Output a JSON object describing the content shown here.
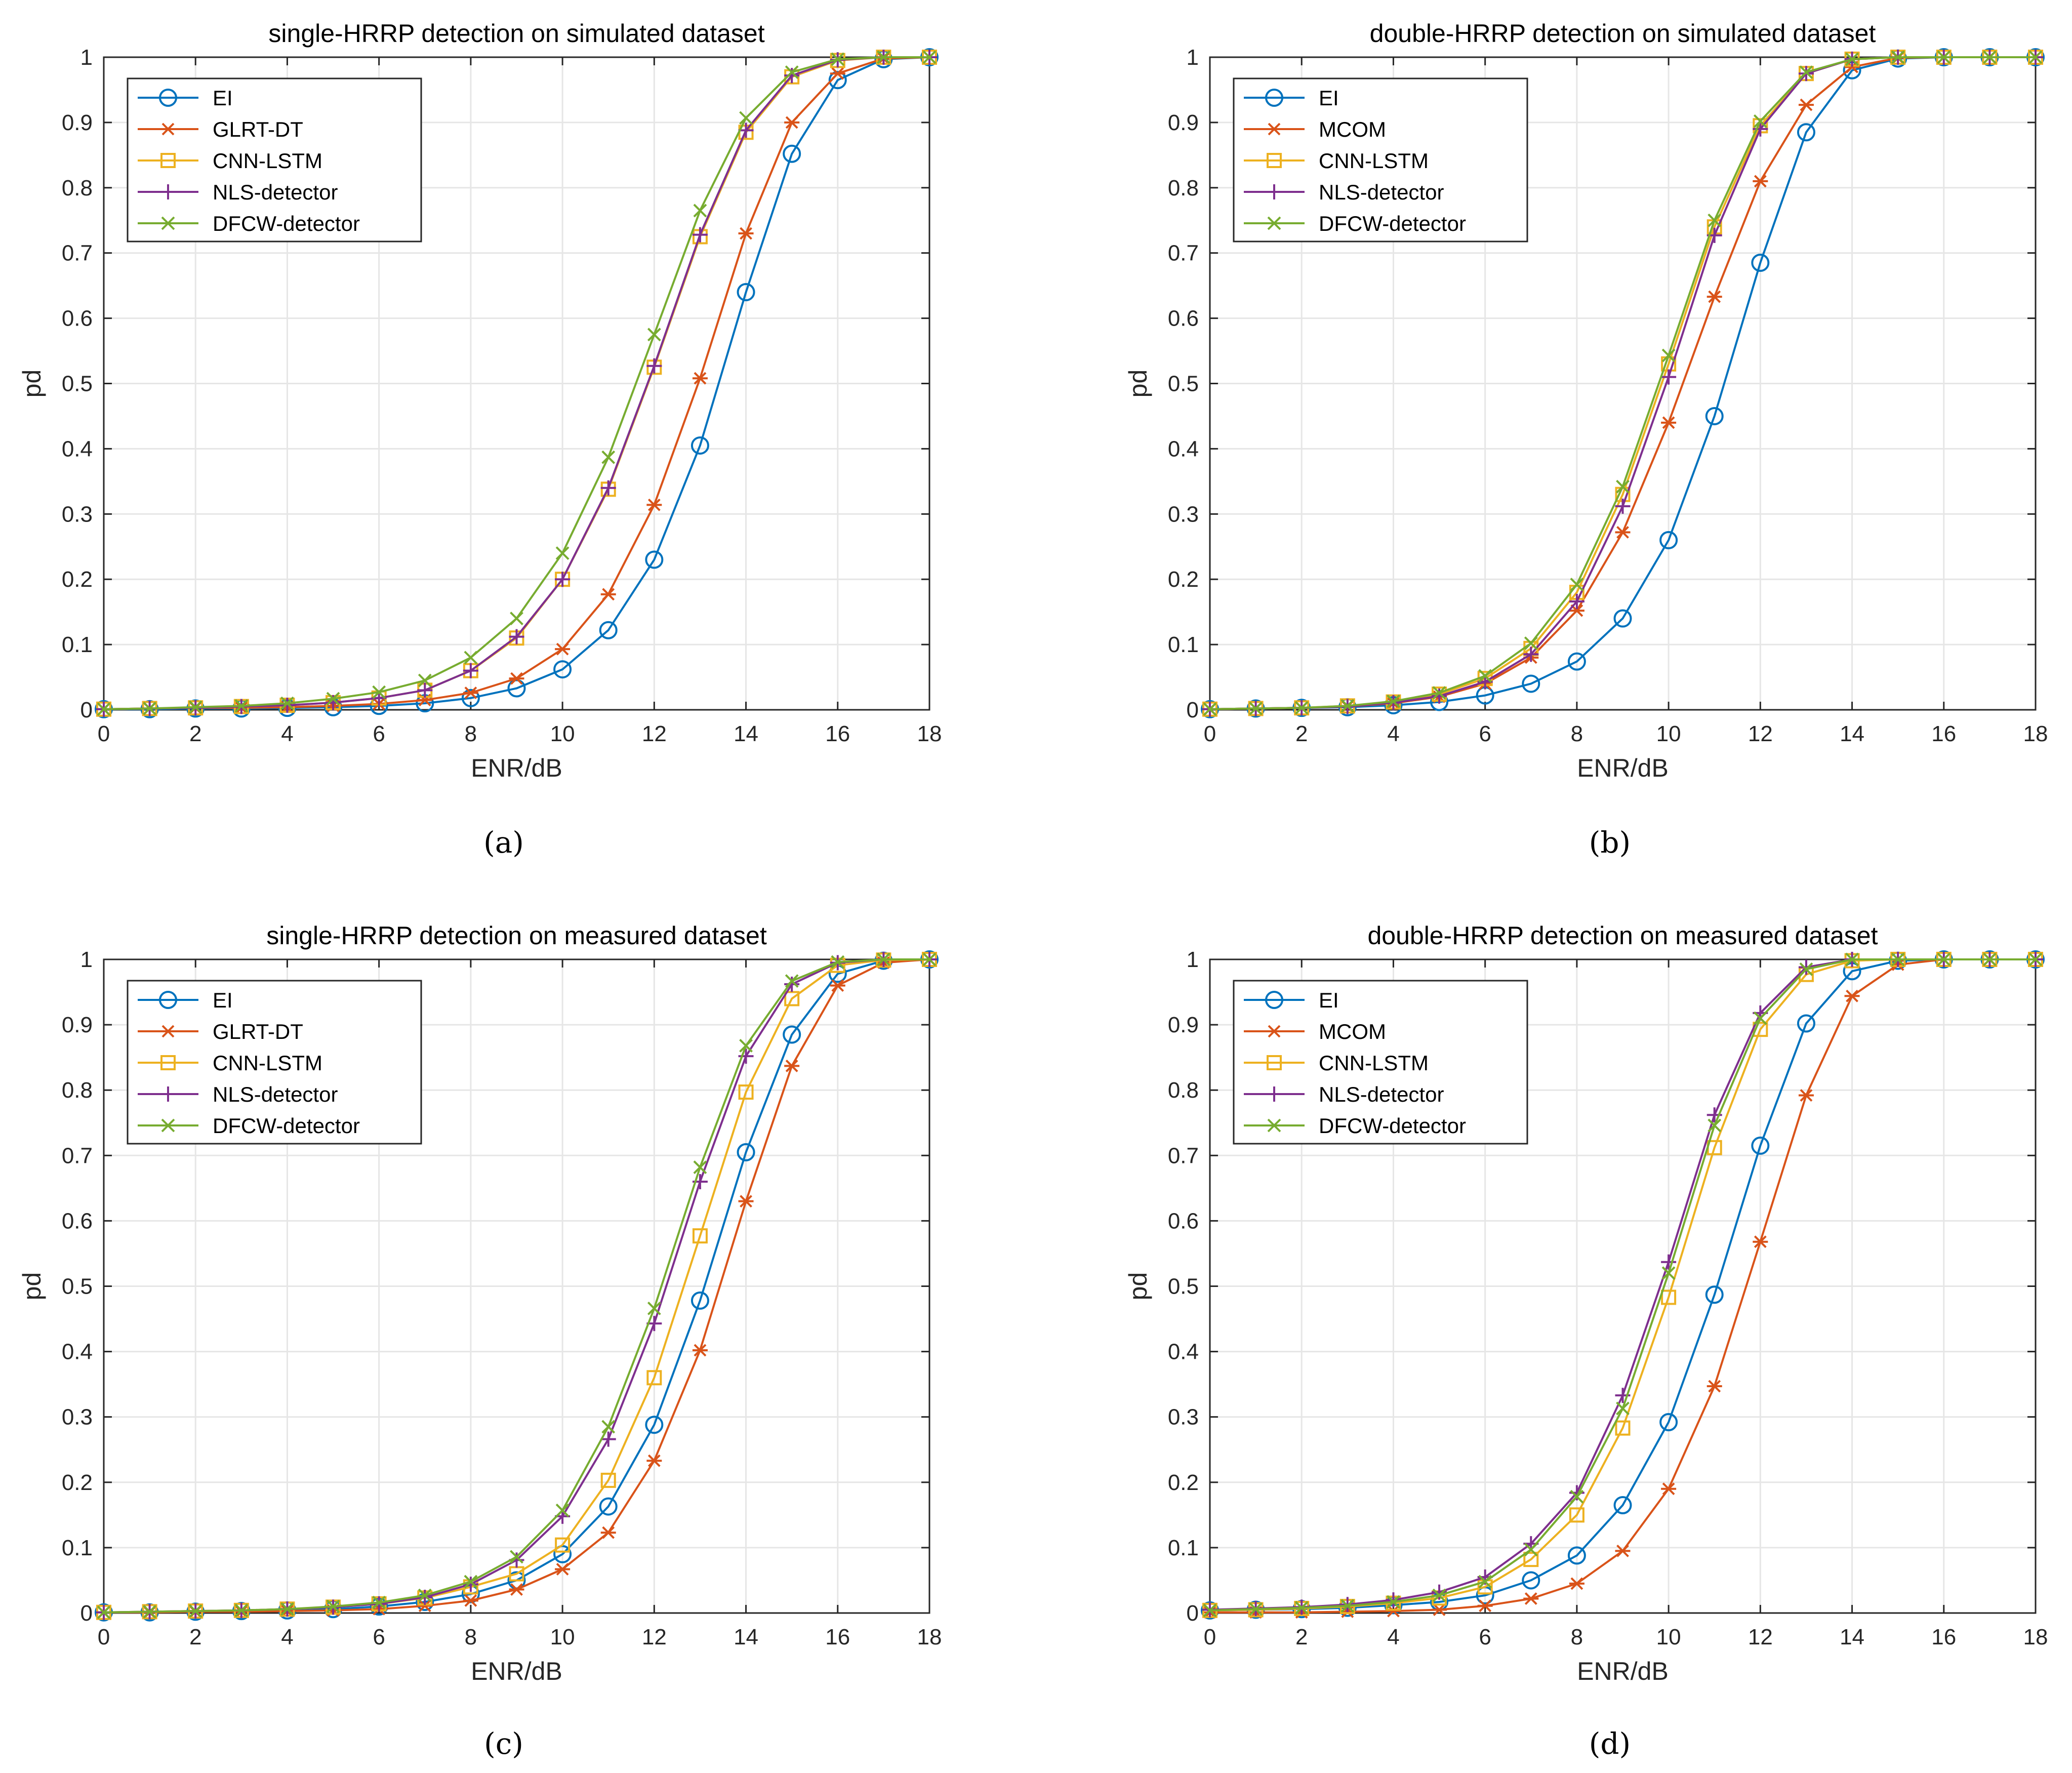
{
  "colors": {
    "EI": "#0072BD",
    "GLRT-DT": "#D95319",
    "MCOM": "#D95319",
    "CNN-LSTM": "#EDB120",
    "NLS-detector": "#7E2F8E",
    "DFCW-detector": "#77AC30",
    "grid": "#e6e6e6",
    "axis": "#262626"
  },
  "x_ticks": [
    "0",
    "2",
    "4",
    "6",
    "8",
    "10",
    "12",
    "14",
    "16",
    "18"
  ],
  "y_ticks": [
    "0",
    "0.1",
    "0.2",
    "0.3",
    "0.4",
    "0.5",
    "0.6",
    "0.7",
    "0.8",
    "0.9",
    "1"
  ],
  "chart_data": [
    {
      "panel": "a",
      "caption": "(a)",
      "type": "line",
      "title": "single-HRRP detection on simulated dataset",
      "xlabel": "ENR/dB",
      "ylabel": "pd",
      "xlim": [
        0,
        18
      ],
      "ylim": [
        0,
        1
      ],
      "grid": true,
      "legend_position": "top-left",
      "x": [
        0,
        1,
        2,
        3,
        4,
        5,
        6,
        7,
        8,
        9,
        10,
        11,
        12,
        13,
        14,
        15,
        16,
        17,
        18
      ],
      "series": [
        {
          "name": "EI",
          "marker": "circle",
          "values": [
            0.001,
            0.001,
            0.002,
            0.002,
            0.003,
            0.004,
            0.006,
            0.01,
            0.018,
            0.033,
            0.062,
            0.122,
            0.23,
            0.405,
            0.64,
            0.852,
            0.965,
            0.997,
            1.0
          ]
        },
        {
          "name": "GLRT-DT",
          "marker": "asterisk",
          "values": [
            0.001,
            0.002,
            0.003,
            0.003,
            0.004,
            0.006,
            0.009,
            0.015,
            0.026,
            0.048,
            0.093,
            0.177,
            0.314,
            0.508,
            0.73,
            0.9,
            0.975,
            0.998,
            1.0
          ]
        },
        {
          "name": "CNN-LSTM",
          "marker": "square",
          "values": [
            0.001,
            0.002,
            0.003,
            0.005,
            0.007,
            0.011,
            0.018,
            0.03,
            0.06,
            0.11,
            0.2,
            0.338,
            0.525,
            0.725,
            0.885,
            0.97,
            0.995,
            1.0,
            1.0
          ]
        },
        {
          "name": "NLS-detector",
          "marker": "plus",
          "values": [
            0.001,
            0.002,
            0.003,
            0.005,
            0.007,
            0.011,
            0.018,
            0.03,
            0.06,
            0.112,
            0.2,
            0.34,
            0.527,
            0.728,
            0.888,
            0.972,
            0.996,
            1.0,
            1.0
          ]
        },
        {
          "name": "DFCW-detector",
          "marker": "x",
          "values": [
            0.001,
            0.002,
            0.004,
            0.006,
            0.01,
            0.017,
            0.027,
            0.045,
            0.08,
            0.14,
            0.24,
            0.387,
            0.575,
            0.765,
            0.907,
            0.977,
            0.997,
            1.0,
            1.0
          ]
        }
      ]
    },
    {
      "panel": "b",
      "caption": "(b)",
      "type": "line",
      "title": "double-HRRP detection on simulated dataset",
      "xlabel": "ENR/dB",
      "ylabel": "pd",
      "xlim": [
        0,
        18
      ],
      "ylim": [
        0,
        1
      ],
      "grid": true,
      "legend_position": "top-left",
      "x": [
        0,
        1,
        2,
        3,
        4,
        5,
        6,
        7,
        8,
        9,
        10,
        11,
        12,
        13,
        14,
        15,
        16,
        17,
        18
      ],
      "series": [
        {
          "name": "EI",
          "marker": "circle",
          "values": [
            0.001,
            0.002,
            0.003,
            0.004,
            0.007,
            0.012,
            0.022,
            0.04,
            0.074,
            0.14,
            0.26,
            0.45,
            0.685,
            0.885,
            0.98,
            0.998,
            1.0,
            1.0,
            1.0
          ]
        },
        {
          "name": "MCOM",
          "marker": "asterisk",
          "values": [
            0.001,
            0.002,
            0.003,
            0.005,
            0.01,
            0.02,
            0.04,
            0.08,
            0.152,
            0.272,
            0.44,
            0.633,
            0.81,
            0.927,
            0.985,
            0.999,
            1.0,
            1.0,
            1.0
          ]
        },
        {
          "name": "CNN-LSTM",
          "marker": "square",
          "values": [
            0.001,
            0.002,
            0.003,
            0.006,
            0.012,
            0.024,
            0.048,
            0.094,
            0.18,
            0.33,
            0.53,
            0.74,
            0.895,
            0.975,
            0.997,
            1.0,
            1.0,
            1.0,
            1.0
          ]
        },
        {
          "name": "NLS-detector",
          "marker": "plus",
          "values": [
            0.001,
            0.002,
            0.003,
            0.005,
            0.011,
            0.021,
            0.043,
            0.085,
            0.166,
            0.312,
            0.51,
            0.727,
            0.89,
            0.975,
            0.997,
            1.0,
            1.0,
            1.0,
            1.0
          ]
        },
        {
          "name": "DFCW-detector",
          "marker": "x",
          "values": [
            0.001,
            0.002,
            0.003,
            0.006,
            0.013,
            0.026,
            0.052,
            0.102,
            0.192,
            0.342,
            0.543,
            0.75,
            0.902,
            0.977,
            0.997,
            1.0,
            1.0,
            1.0,
            1.0
          ]
        }
      ]
    },
    {
      "panel": "c",
      "caption": "(c)",
      "type": "line",
      "title": "single-HRRP detection on measured dataset",
      "xlabel": "ENR/dB",
      "ylabel": "pd",
      "xlim": [
        0,
        18
      ],
      "ylim": [
        0,
        1
      ],
      "grid": true,
      "legend_position": "top-left",
      "x": [
        0,
        1,
        2,
        3,
        4,
        5,
        6,
        7,
        8,
        9,
        10,
        11,
        12,
        13,
        14,
        15,
        16,
        17,
        18
      ],
      "series": [
        {
          "name": "EI",
          "marker": "circle",
          "values": [
            0.001,
            0.001,
            0.002,
            0.003,
            0.004,
            0.006,
            0.01,
            0.017,
            0.029,
            0.05,
            0.09,
            0.163,
            0.288,
            0.478,
            0.705,
            0.885,
            0.978,
            0.998,
            1.0
          ]
        },
        {
          "name": "GLRT-DT",
          "marker": "asterisk",
          "values": [
            0.001,
            0.001,
            0.002,
            0.002,
            0.003,
            0.004,
            0.006,
            0.011,
            0.019,
            0.036,
            0.067,
            0.123,
            0.233,
            0.402,
            0.63,
            0.837,
            0.96,
            0.995,
            1.0
          ]
        },
        {
          "name": "CNN-LSTM",
          "marker": "square",
          "values": [
            0.001,
            0.002,
            0.003,
            0.004,
            0.006,
            0.009,
            0.014,
            0.023,
            0.04,
            0.06,
            0.104,
            0.203,
            0.36,
            0.577,
            0.797,
            0.94,
            0.991,
            0.999,
            1.0
          ]
        },
        {
          "name": "NLS-detector",
          "marker": "plus",
          "values": [
            0.001,
            0.002,
            0.003,
            0.004,
            0.006,
            0.009,
            0.014,
            0.024,
            0.044,
            0.081,
            0.148,
            0.266,
            0.443,
            0.66,
            0.852,
            0.962,
            0.995,
            1.0,
            1.0
          ]
        },
        {
          "name": "DFCW-detector",
          "marker": "x",
          "values": [
            0.001,
            0.002,
            0.003,
            0.004,
            0.006,
            0.01,
            0.016,
            0.027,
            0.048,
            0.086,
            0.157,
            0.285,
            0.466,
            0.682,
            0.868,
            0.967,
            0.996,
            1.0,
            1.0
          ]
        }
      ]
    },
    {
      "panel": "d",
      "caption": "(d)",
      "type": "line",
      "title": "double-HRRP detection on measured dataset",
      "xlabel": "ENR/dB",
      "ylabel": "pd",
      "xlim": [
        0,
        18
      ],
      "ylim": [
        0,
        1
      ],
      "grid": true,
      "legend_position": "top-left",
      "x": [
        0,
        1,
        2,
        3,
        4,
        5,
        6,
        7,
        8,
        9,
        10,
        11,
        12,
        13,
        14,
        15,
        16,
        17,
        18
      ],
      "series": [
        {
          "name": "EI",
          "marker": "circle",
          "values": [
            0.004,
            0.005,
            0.006,
            0.008,
            0.012,
            0.017,
            0.027,
            0.05,
            0.088,
            0.165,
            0.292,
            0.487,
            0.715,
            0.902,
            0.982,
            0.998,
            1.0,
            1.0,
            1.0
          ]
        },
        {
          "name": "MCOM",
          "marker": "asterisk",
          "values": [
            0.001,
            0.001,
            0.001,
            0.002,
            0.003,
            0.005,
            0.011,
            0.022,
            0.045,
            0.095,
            0.19,
            0.347,
            0.568,
            0.792,
            0.944,
            0.992,
            1.0,
            1.0,
            1.0
          ]
        },
        {
          "name": "CNN-LSTM",
          "marker": "square",
          "values": [
            0.004,
            0.005,
            0.007,
            0.01,
            0.015,
            0.023,
            0.04,
            0.082,
            0.15,
            0.283,
            0.483,
            0.712,
            0.893,
            0.977,
            0.998,
            1.0,
            1.0,
            1.0,
            1.0
          ]
        },
        {
          "name": "NLS-detector",
          "marker": "plus",
          "values": [
            0.005,
            0.007,
            0.009,
            0.013,
            0.02,
            0.032,
            0.055,
            0.106,
            0.184,
            0.333,
            0.537,
            0.762,
            0.918,
            0.988,
            1.0,
            1.0,
            1.0,
            1.0,
            1.0
          ]
        },
        {
          "name": "DFCW-detector",
          "marker": "x",
          "values": [
            0.004,
            0.006,
            0.008,
            0.011,
            0.017,
            0.027,
            0.048,
            0.097,
            0.178,
            0.313,
            0.52,
            0.746,
            0.91,
            0.985,
            1.0,
            1.0,
            1.0,
            1.0,
            1.0
          ]
        }
      ]
    }
  ]
}
